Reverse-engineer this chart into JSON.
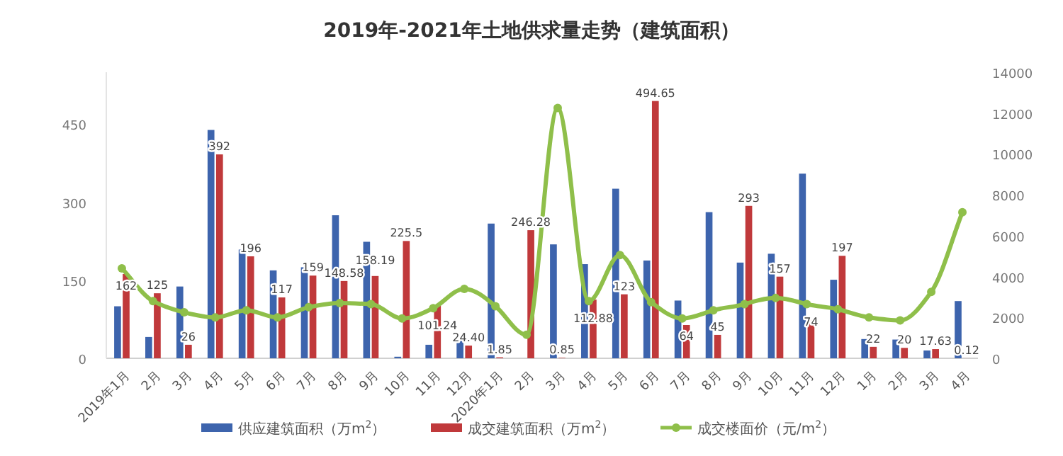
{
  "chart_data": {
    "type": "bar",
    "title": "2019年-2021年土地供求量走势（建筑面积）",
    "categories": [
      "2019年1月",
      "2月",
      "3月",
      "4月",
      "5月",
      "6月",
      "7月",
      "8月",
      "9月",
      "10月",
      "11月",
      "12月",
      "2020年1月",
      "2月",
      "3月",
      "4月",
      "5月",
      "6月",
      "7月",
      "8月",
      "9月",
      "10月",
      "11月",
      "12月",
      "1月",
      "2月",
      "3月",
      "4月"
    ],
    "series": [
      {
        "name": "供应建筑面积（万m$^{2}$）",
        "color": "#3d64ad",
        "values": [
          100,
          41,
          138,
          439,
          209,
          169,
          175,
          275,
          224,
          3,
          26,
          38,
          259,
          0,
          219,
          181,
          326,
          188,
          111,
          281,
          184,
          201,
          355,
          151,
          37,
          36,
          15,
          110
        ]
      },
      {
        "name": "成交建筑面积（万m$^{2}$）",
        "color": "#c0393b",
        "values": [
          162,
          125,
          26,
          392,
          196,
          117,
          159,
          148.58,
          158.19,
          225.5,
          101.24,
          24.4,
          1.85,
          246.28,
          0.85,
          112.88,
          123,
          494.65,
          64,
          45,
          293,
          157,
          74,
          197,
          22,
          20,
          17.63,
          0.12
        ],
        "value_labels": [
          "162",
          "125",
          "26",
          "392",
          "196",
          "117",
          "159",
          "148.58",
          "158.19",
          "225.5",
          "101.24",
          "24.40",
          "1.85",
          "246.28",
          "0.85",
          "112.88",
          "123",
          "494.65",
          "64",
          "45",
          "293",
          "157",
          "74",
          "197",
          "22",
          "20",
          "17.63",
          "0.12"
        ]
      },
      {
        "name": "成交楼面价（元/m$^{2}$）",
        "type": "line",
        "axis": "y2",
        "color": "#8fbf4a",
        "marker": "circle",
        "values": [
          4400,
          2800,
          2250,
          2000,
          2350,
          2000,
          2500,
          2700,
          2650,
          1950,
          2450,
          3400,
          2550,
          1150,
          12250,
          2800,
          5050,
          2750,
          1950,
          2350,
          2650,
          2950,
          2650,
          2400,
          2000,
          1850,
          3250,
          7150
        ]
      }
    ],
    "ylim": [
      0,
      550
    ],
    "yticks": [
      0,
      150,
      300,
      450
    ],
    "y2lim": [
      0,
      14000
    ],
    "y2ticks": [
      0,
      2000,
      4000,
      6000,
      8000,
      10000,
      12000,
      14000
    ],
    "legend": "bottom",
    "grid": false
  }
}
